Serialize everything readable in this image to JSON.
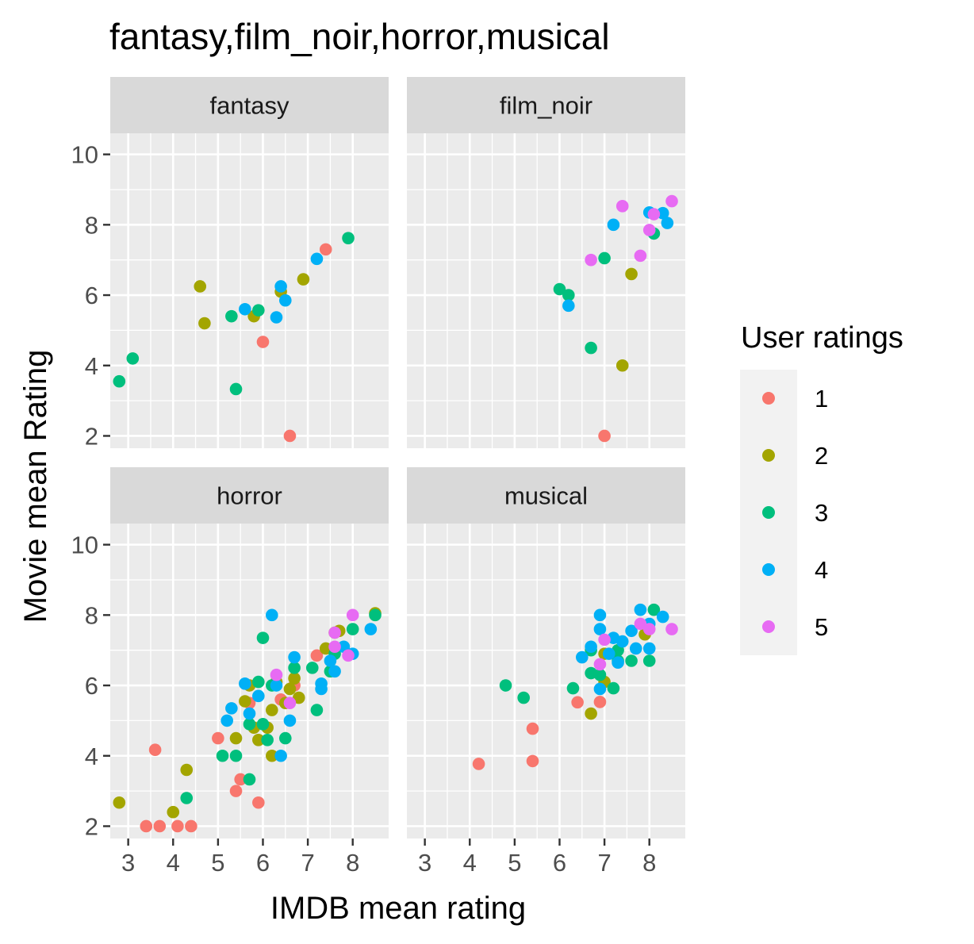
{
  "chart_data": {
    "type": "scatter",
    "title": "fantasy,film_noir,horror,musical",
    "xlabel": "IMDB mean rating",
    "ylabel": "Movie mean Rating",
    "xlim": [
      2.6,
      8.8
    ],
    "ylim": [
      1.65,
      10.6
    ],
    "x_ticks": [
      3,
      4,
      5,
      6,
      7,
      8
    ],
    "y_ticks": [
      2,
      4,
      6,
      8,
      10
    ],
    "grid": true,
    "legend": {
      "title": "User ratings",
      "position": "right",
      "entries": [
        {
          "label": "1",
          "color": "#F8766D"
        },
        {
          "label": "2",
          "color": "#A3A500"
        },
        {
          "label": "3",
          "color": "#00BF7D"
        },
        {
          "label": "4",
          "color": "#00B0F6"
        },
        {
          "label": "5",
          "color": "#E76BF3"
        }
      ]
    },
    "panels": [
      {
        "label": "fantasy",
        "series": [
          {
            "name": "1",
            "points": [
              [
                7.4,
                7.3
              ],
              [
                6.0,
                4.67
              ],
              [
                6.6,
                2.0
              ]
            ]
          },
          {
            "name": "2",
            "points": [
              [
                4.6,
                6.25
              ],
              [
                4.7,
                5.2
              ],
              [
                5.8,
                5.4
              ],
              [
                6.9,
                6.45
              ],
              [
                6.4,
                6.1
              ]
            ]
          },
          {
            "name": "3",
            "points": [
              [
                2.8,
                3.55
              ],
              [
                3.1,
                4.2
              ],
              [
                5.3,
                5.4
              ],
              [
                5.9,
                5.57
              ],
              [
                5.4,
                3.33
              ],
              [
                7.9,
                7.62
              ]
            ]
          },
          {
            "name": "4",
            "points": [
              [
                5.6,
                5.6
              ],
              [
                6.4,
                6.25
              ],
              [
                6.5,
                5.85
              ],
              [
                6.3,
                5.37
              ],
              [
                7.2,
                7.03
              ]
            ]
          },
          {
            "name": "5",
            "points": []
          }
        ]
      },
      {
        "label": "film_noir",
        "series": [
          {
            "name": "1",
            "points": [
              [
                7.0,
                2.0
              ]
            ]
          },
          {
            "name": "2",
            "points": [
              [
                7.4,
                4.0
              ],
              [
                7.6,
                6.6
              ]
            ]
          },
          {
            "name": "3",
            "points": [
              [
                6.0,
                6.17
              ],
              [
                6.2,
                6.0
              ],
              [
                6.7,
                4.5
              ],
              [
                7.0,
                7.05
              ],
              [
                8.1,
                7.75
              ]
            ]
          },
          {
            "name": "4",
            "points": [
              [
                6.2,
                5.7
              ],
              [
                7.2,
                8.0
              ],
              [
                8.0,
                8.35
              ],
              [
                8.3,
                8.33
              ],
              [
                8.4,
                8.05
              ]
            ]
          },
          {
            "name": "5",
            "points": [
              [
                6.7,
                7.0
              ],
              [
                7.4,
                8.53
              ],
              [
                7.8,
                7.12
              ],
              [
                8.0,
                7.85
              ],
              [
                8.1,
                8.3
              ],
              [
                8.5,
                8.67
              ]
            ]
          }
        ]
      },
      {
        "label": "horror",
        "series": [
          {
            "name": "1",
            "points": [
              [
                3.4,
                2.0
              ],
              [
                3.6,
                4.17
              ],
              [
                3.7,
                2.0
              ],
              [
                4.1,
                2.0
              ],
              [
                4.4,
                2.0
              ],
              [
                5.0,
                4.5
              ],
              [
                5.4,
                3.0
              ],
              [
                5.5,
                3.33
              ],
              [
                5.7,
                5.5
              ],
              [
                5.9,
                2.67
              ],
              [
                6.4,
                5.6
              ],
              [
                6.7,
                6.0
              ],
              [
                7.2,
                6.85
              ]
            ]
          },
          {
            "name": "2",
            "points": [
              [
                2.8,
                2.67
              ],
              [
                4.0,
                2.4
              ],
              [
                4.3,
                3.6
              ],
              [
                5.4,
                4.5
              ],
              [
                5.6,
                5.55
              ],
              [
                5.7,
                6.0
              ],
              [
                5.8,
                4.8
              ],
              [
                5.9,
                4.45
              ],
              [
                6.1,
                4.8
              ],
              [
                6.2,
                5.3
              ],
              [
                6.2,
                4.0
              ],
              [
                6.3,
                6.1
              ],
              [
                6.5,
                5.5
              ],
              [
                6.6,
                5.9
              ],
              [
                6.7,
                6.2
              ],
              [
                6.8,
                5.65
              ],
              [
                7.4,
                7.05
              ],
              [
                7.6,
                7.5
              ],
              [
                7.7,
                7.55
              ],
              [
                8.5,
                8.05
              ]
            ]
          },
          {
            "name": "3",
            "points": [
              [
                4.3,
                2.8
              ],
              [
                5.1,
                4.0
              ],
              [
                5.4,
                4.0
              ],
              [
                5.7,
                3.33
              ],
              [
                5.7,
                4.9
              ],
              [
                5.9,
                6.1
              ],
              [
                6.0,
                7.35
              ],
              [
                6.0,
                4.9
              ],
              [
                6.1,
                4.45
              ],
              [
                6.2,
                6.0
              ],
              [
                6.5,
                4.5
              ],
              [
                6.7,
                6.5
              ],
              [
                7.1,
                6.5
              ],
              [
                7.2,
                5.3
              ],
              [
                7.5,
                6.4
              ],
              [
                7.6,
                6.9
              ],
              [
                8.0,
                7.6
              ],
              [
                8.5,
                8.0
              ]
            ]
          },
          {
            "name": "4",
            "points": [
              [
                5.2,
                5.0
              ],
              [
                5.3,
                5.35
              ],
              [
                5.6,
                6.05
              ],
              [
                5.7,
                5.2
              ],
              [
                5.9,
                5.7
              ],
              [
                6.2,
                8.0
              ],
              [
                6.3,
                6.0
              ],
              [
                6.4,
                4.0
              ],
              [
                6.6,
                5.0
              ],
              [
                6.7,
                6.8
              ],
              [
                7.3,
                6.05
              ],
              [
                7.3,
                5.9
              ],
              [
                7.5,
                6.7
              ],
              [
                7.6,
                6.4
              ],
              [
                7.8,
                7.1
              ],
              [
                8.0,
                6.9
              ],
              [
                8.4,
                7.6
              ]
            ]
          },
          {
            "name": "5",
            "points": [
              [
                6.3,
                6.3
              ],
              [
                6.6,
                5.5
              ],
              [
                7.6,
                7.1
              ],
              [
                7.9,
                6.85
              ],
              [
                8.0,
                8.0
              ],
              [
                7.6,
                7.5
              ]
            ]
          }
        ]
      },
      {
        "label": "musical",
        "series": [
          {
            "name": "1",
            "points": [
              [
                4.2,
                3.77
              ],
              [
                5.4,
                4.77
              ],
              [
                5.4,
                3.85
              ],
              [
                6.4,
                5.52
              ],
              [
                6.9,
                5.53
              ]
            ]
          },
          {
            "name": "2",
            "points": [
              [
                6.7,
                5.2
              ],
              [
                7.0,
                6.1
              ],
              [
                7.0,
                6.9
              ],
              [
                7.9,
                7.45
              ]
            ]
          },
          {
            "name": "3",
            "points": [
              [
                4.8,
                6.0
              ],
              [
                5.2,
                5.65
              ],
              [
                6.3,
                5.92
              ],
              [
                6.7,
                6.35
              ],
              [
                6.7,
                7.0
              ],
              [
                6.9,
                6.3
              ],
              [
                7.2,
                5.92
              ],
              [
                7.3,
                7.0
              ],
              [
                7.3,
                6.7
              ],
              [
                7.6,
                6.7
              ],
              [
                8.0,
                6.7
              ],
              [
                8.1,
                8.15
              ]
            ]
          },
          {
            "name": "4",
            "points": [
              [
                6.5,
                6.8
              ],
              [
                6.7,
                7.1
              ],
              [
                6.9,
                8.0
              ],
              [
                6.9,
                7.6
              ],
              [
                7.1,
                6.9
              ],
              [
                7.2,
                7.35
              ],
              [
                7.3,
                6.65
              ],
              [
                7.4,
                7.25
              ],
              [
                7.6,
                7.55
              ],
              [
                7.7,
                7.05
              ],
              [
                7.8,
                8.15
              ],
              [
                8.0,
                7.75
              ],
              [
                8.0,
                7.05
              ],
              [
                8.3,
                7.95
              ],
              [
                6.9,
                5.9
              ]
            ]
          },
          {
            "name": "5",
            "points": [
              [
                6.9,
                6.6
              ],
              [
                7.0,
                7.3
              ],
              [
                7.8,
                7.75
              ],
              [
                8.0,
                7.6
              ],
              [
                8.5,
                7.6
              ]
            ]
          }
        ]
      }
    ]
  }
}
